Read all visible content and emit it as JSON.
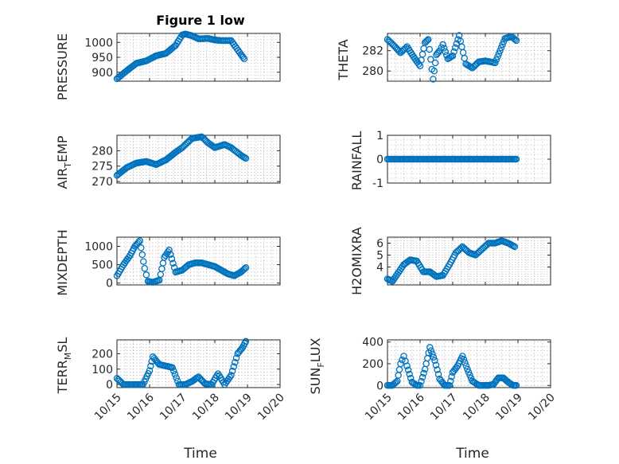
{
  "figure": {
    "title": "Figure 1 low",
    "marker_color": "#0072BD",
    "grid": "on (dotted)"
  },
  "chart_data": [
    {
      "type": "scatter",
      "ylabel": "PRESSURE",
      "title": "Figure 1 low",
      "xlim": [
        0,
        5
      ],
      "ylim": [
        870,
        1030
      ],
      "yticks": [
        900,
        950,
        1000
      ],
      "yticklabels": [
        "900",
        "950",
        "1000"
      ],
      "xticks": [
        0,
        1,
        2,
        3,
        4,
        5
      ],
      "xticklabels": [
        "10/15",
        "10/16",
        "10/17",
        "10/18",
        "10/19",
        "10/20"
      ],
      "grid": true,
      "x": [
        0.0,
        0.3,
        0.6,
        0.9,
        1.2,
        1.5,
        1.8,
        2.0,
        2.1,
        2.3,
        2.5,
        2.8,
        3.0,
        3.2,
        3.5,
        3.8,
        3.9
      ],
      "y": [
        878,
        905,
        930,
        938,
        955,
        963,
        990,
        1025,
        1028,
        1022,
        1012,
        1013,
        1008,
        1006,
        1006,
        960,
        945
      ]
    },
    {
      "type": "scatter",
      "ylabel": "THETA",
      "xlim": [
        0,
        5
      ],
      "ylim": [
        279,
        283.7
      ],
      "yticks": [
        280,
        282
      ],
      "yticklabels": [
        "280",
        "282"
      ],
      "xticks": [
        0,
        1,
        2,
        3,
        4,
        5
      ],
      "xticklabels": [
        "10/15",
        "10/16",
        "10/17",
        "10/18",
        "10/19",
        "10/20"
      ],
      "grid": true,
      "x": [
        0.0,
        0.2,
        0.4,
        0.6,
        0.8,
        1.0,
        1.15,
        1.25,
        1.4,
        1.5,
        1.6,
        1.7,
        1.85,
        2.0,
        2.2,
        2.4,
        2.6,
        2.8,
        3.0,
        3.3,
        3.6,
        3.8,
        3.95
      ],
      "y": [
        283.1,
        282.5,
        281.8,
        282.4,
        281.4,
        280.5,
        282.8,
        283.1,
        279.2,
        281.6,
        282.0,
        282.6,
        281.2,
        281.5,
        283.5,
        280.7,
        280.3,
        280.9,
        281.0,
        280.8,
        283.2,
        283.4,
        283.0
      ]
    },
    {
      "type": "scatter",
      "ylabel": "AIR_TEMP",
      "xlim": [
        0,
        5
      ],
      "ylim": [
        269.5,
        285
      ],
      "yticks": [
        270,
        275,
        280
      ],
      "yticklabels": [
        "270",
        "275",
        "280"
      ],
      "xticks": [
        0,
        1,
        2,
        3,
        4,
        5
      ],
      "xticklabels": [
        "10/15",
        "10/16",
        "10/17",
        "10/18",
        "10/19",
        "10/20"
      ],
      "grid": true,
      "x": [
        0.0,
        0.3,
        0.6,
        0.9,
        1.2,
        1.5,
        1.8,
        2.0,
        2.3,
        2.6,
        2.8,
        3.0,
        3.3,
        3.5,
        3.8,
        3.95
      ],
      "y": [
        272,
        274.5,
        276,
        276.5,
        275.5,
        277,
        279.5,
        281,
        284,
        284.5,
        282.5,
        281,
        282,
        281,
        278.5,
        277.5
      ]
    },
    {
      "type": "scatter",
      "ylabel": "RAINFALL",
      "xlim": [
        0,
        5
      ],
      "ylim": [
        -1,
        1
      ],
      "yticks": [
        -1,
        0,
        1
      ],
      "yticklabels": [
        "-1",
        "0",
        "1"
      ],
      "xticks": [
        0,
        1,
        2,
        3,
        4,
        5
      ],
      "xticklabels": [
        "10/15",
        "10/16",
        "10/17",
        "10/18",
        "10/19",
        "10/20"
      ],
      "grid": true,
      "x": [
        0.0,
        0.2,
        0.4,
        0.6,
        0.8,
        1.0,
        1.2,
        1.4,
        1.6,
        1.8,
        2.0,
        2.2,
        2.4,
        2.6,
        2.8,
        3.0,
        3.2,
        3.4,
        3.6,
        3.8,
        3.95
      ],
      "y": [
        0,
        0,
        0,
        0,
        0,
        0,
        0,
        0,
        0,
        0,
        0,
        0,
        0,
        0,
        0,
        0,
        0,
        0,
        0,
        0,
        0
      ]
    },
    {
      "type": "scatter",
      "ylabel": "MIXDEPTH",
      "xlim": [
        0,
        5
      ],
      "ylim": [
        -50,
        1250
      ],
      "yticks": [
        0,
        500,
        1000
      ],
      "yticklabels": [
        "0",
        "500",
        "1000"
      ],
      "xticks": [
        0,
        1,
        2,
        3,
        4,
        5
      ],
      "xticklabels": [
        "10/15",
        "10/16",
        "10/17",
        "10/18",
        "10/19",
        "10/20"
      ],
      "grid": true,
      "x": [
        0.0,
        0.2,
        0.4,
        0.55,
        0.7,
        0.85,
        0.95,
        1.1,
        1.3,
        1.45,
        1.6,
        1.8,
        2.0,
        2.2,
        2.4,
        2.6,
        2.8,
        3.0,
        3.2,
        3.4,
        3.6,
        3.8,
        3.95
      ],
      "y": [
        200,
        500,
        750,
        1000,
        1150,
        400,
        50,
        20,
        80,
        700,
        900,
        300,
        350,
        500,
        550,
        550,
        500,
        450,
        350,
        250,
        200,
        300,
        420
      ]
    },
    {
      "type": "scatter",
      "ylabel": "H2OMIXRA",
      "xlim": [
        0,
        5
      ],
      "ylim": [
        2.5,
        6.5
      ],
      "yticks": [
        4,
        5,
        6
      ],
      "yticklabels": [
        "4",
        "5",
        "6"
      ],
      "xticks": [
        0,
        1,
        2,
        3,
        4,
        5
      ],
      "xticklabels": [
        "10/15",
        "10/16",
        "10/17",
        "10/18",
        "10/19",
        "10/20"
      ],
      "grid": true,
      "x": [
        0.0,
        0.15,
        0.3,
        0.5,
        0.7,
        0.9,
        1.1,
        1.3,
        1.5,
        1.7,
        1.9,
        2.1,
        2.3,
        2.5,
        2.7,
        2.9,
        3.1,
        3.3,
        3.5,
        3.7,
        3.9
      ],
      "y": [
        3.0,
        2.8,
        3.4,
        4.2,
        4.6,
        4.5,
        3.6,
        3.6,
        3.2,
        3.3,
        4.2,
        5.2,
        5.7,
        5.2,
        5.0,
        5.5,
        6.0,
        6.0,
        6.2,
        6.0,
        5.7
      ]
    },
    {
      "type": "scatter",
      "ylabel": "TERR_MSL",
      "xlim": [
        0,
        5
      ],
      "ylim": [
        -20,
        290
      ],
      "yticks": [
        0,
        100,
        200
      ],
      "yticklabels": [
        "0",
        "100",
        "200"
      ],
      "xticks": [
        0,
        1,
        2,
        3,
        4,
        5
      ],
      "xticklabels": [
        "10/15",
        "10/16",
        "10/17",
        "10/18",
        "10/19",
        "10/20"
      ],
      "grid": true,
      "x": [
        0.0,
        0.2,
        0.4,
        0.6,
        0.8,
        1.0,
        1.1,
        1.3,
        1.5,
        1.7,
        1.9,
        2.1,
        2.3,
        2.5,
        2.7,
        2.9,
        3.1,
        3.3,
        3.5,
        3.7,
        3.85,
        3.95
      ],
      "y": [
        40,
        0,
        0,
        0,
        0,
        90,
        180,
        130,
        120,
        110,
        0,
        0,
        20,
        50,
        5,
        0,
        70,
        0,
        60,
        200,
        240,
        280
      ]
    },
    {
      "type": "scatter",
      "ylabel": "SUN_FLUX",
      "xlim": [
        0,
        5
      ],
      "ylim": [
        -20,
        420
      ],
      "yticks": [
        0,
        200,
        400
      ],
      "yticklabels": [
        "0",
        "200",
        "400"
      ],
      "xticks": [
        0,
        1,
        2,
        3,
        4,
        5
      ],
      "xticklabels": [
        "10/15",
        "10/16",
        "10/17",
        "10/18",
        "10/19",
        "10/20"
      ],
      "grid": true,
      "x": [
        0.0,
        0.15,
        0.3,
        0.4,
        0.5,
        0.6,
        0.75,
        0.9,
        1.0,
        1.15,
        1.3,
        1.45,
        1.6,
        1.75,
        1.9,
        2.0,
        2.15,
        2.3,
        2.45,
        2.6,
        2.8,
        3.0,
        3.1,
        3.25,
        3.4,
        3.55,
        3.7,
        3.85,
        3.95
      ],
      "y": [
        0,
        0,
        40,
        200,
        270,
        180,
        30,
        0,
        0,
        150,
        350,
        230,
        60,
        0,
        0,
        120,
        180,
        270,
        150,
        40,
        0,
        0,
        0,
        10,
        70,
        70,
        30,
        0,
        0
      ]
    }
  ],
  "axis_labels": {
    "xlabel_left": "Time",
    "xlabel_right": "Time",
    "ylabels": [
      "PRESSURE",
      "THETA",
      "AIR",
      "T",
      "EMP",
      "RAINFALL",
      "MIXDEPTH",
      "H2OMIXRA",
      "TERR",
      "M",
      "SL",
      "SUN",
      "F",
      "LUX"
    ],
    "y_sub": {
      "air_main": "AIR",
      "air_sub": "T",
      "air_tail": "EMP",
      "terr_main": "TERR",
      "terr_sub": "M",
      "terr_tail": "SL",
      "sun_main": "SUN",
      "sun_sub": "F",
      "sun_tail": "LUX"
    }
  }
}
